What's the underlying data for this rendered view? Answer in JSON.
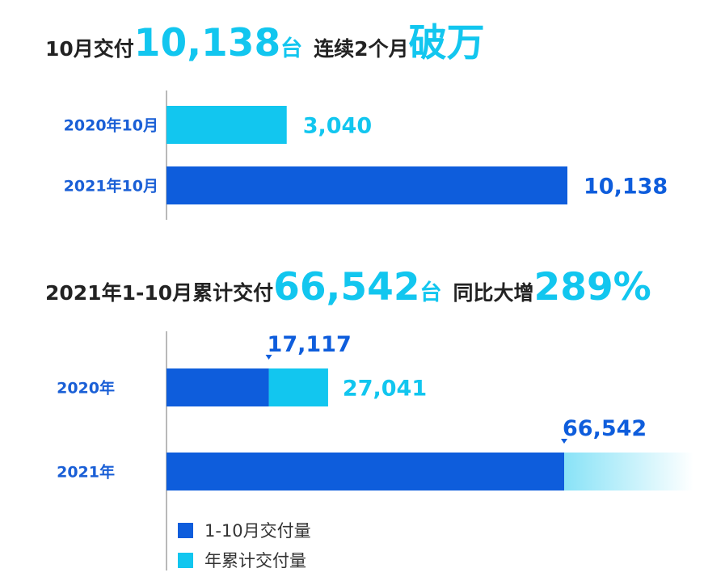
{
  "colors": {
    "dark_blue": "#0e5ddc",
    "light_blue": "#12c6ef",
    "label_blue": "#1a5fd6",
    "text": "#222222",
    "axis": "#b9b9b9"
  },
  "headline1": {
    "part1": "10月交付",
    "big": "10,138",
    "unit": "台",
    "part2": "连续2个月",
    "highlight": "破万"
  },
  "headline2": {
    "part1": "2021年1-10月累计交付",
    "big": "66,542",
    "unit": "台",
    "part2": "同比大增",
    "highlight": "289%"
  },
  "chart_data": [
    {
      "type": "bar",
      "orientation": "horizontal",
      "categories": [
        "2020年10月",
        "2021年10月"
      ],
      "values": [
        3040,
        10138
      ],
      "value_labels": [
        "3,040",
        "10,138"
      ],
      "xlim": [
        0,
        11000
      ],
      "grid": false
    },
    {
      "type": "bar",
      "orientation": "horizontal",
      "stacked": true,
      "categories": [
        "2020年",
        "2021年"
      ],
      "series": [
        {
          "name": "1-10月交付量",
          "values": [
            17117,
            66542
          ],
          "value_labels": [
            "17,117",
            "66,542"
          ]
        },
        {
          "name": "年累计交付量",
          "values": [
            9924,
            null
          ]
        }
      ],
      "totals": [
        27041,
        null
      ],
      "total_labels": [
        "27,041",
        null
      ],
      "xlim": [
        0,
        90000
      ],
      "legend": "bottom-left",
      "grid": false
    }
  ]
}
